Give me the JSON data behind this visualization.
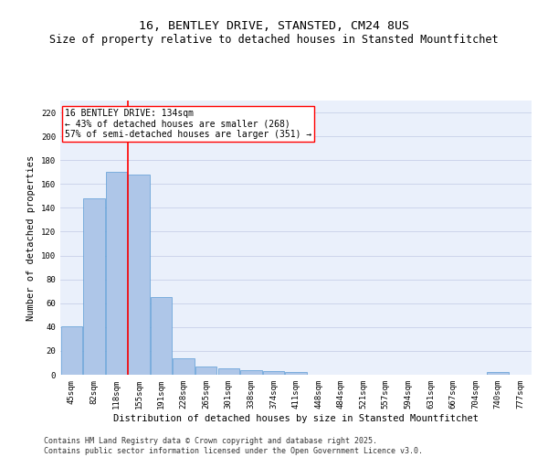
{
  "title": "16, BENTLEY DRIVE, STANSTED, CM24 8US",
  "subtitle": "Size of property relative to detached houses in Stansted Mountfitchet",
  "xlabel": "Distribution of detached houses by size in Stansted Mountfitchet",
  "ylabel": "Number of detached properties",
  "categories": [
    "45sqm",
    "82sqm",
    "118sqm",
    "155sqm",
    "191sqm",
    "228sqm",
    "265sqm",
    "301sqm",
    "338sqm",
    "374sqm",
    "411sqm",
    "448sqm",
    "484sqm",
    "521sqm",
    "557sqm",
    "594sqm",
    "631sqm",
    "667sqm",
    "704sqm",
    "740sqm",
    "777sqm"
  ],
  "values": [
    41,
    148,
    170,
    168,
    65,
    14,
    7,
    5,
    4,
    3,
    2,
    0,
    0,
    0,
    0,
    0,
    0,
    0,
    0,
    2,
    0
  ],
  "bar_color": "#aec6e8",
  "bar_edge_color": "#5b9bd5",
  "vline_position": 2.5,
  "vline_color": "red",
  "annotation_text": "16 BENTLEY DRIVE: 134sqm\n← 43% of detached houses are smaller (268)\n57% of semi-detached houses are larger (351) →",
  "annotation_box_color": "white",
  "annotation_box_edge": "red",
  "ylim": [
    0,
    230
  ],
  "yticks": [
    0,
    20,
    40,
    60,
    80,
    100,
    120,
    140,
    160,
    180,
    200,
    220
  ],
  "background_color": "#eaf0fb",
  "grid_color": "#c8d0e8",
  "footer": "Contains HM Land Registry data © Crown copyright and database right 2025.\nContains public sector information licensed under the Open Government Licence v3.0.",
  "title_fontsize": 9.5,
  "subtitle_fontsize": 8.5,
  "xlabel_fontsize": 7.5,
  "ylabel_fontsize": 7.5,
  "tick_fontsize": 6.5,
  "annotation_fontsize": 7,
  "footer_fontsize": 6
}
